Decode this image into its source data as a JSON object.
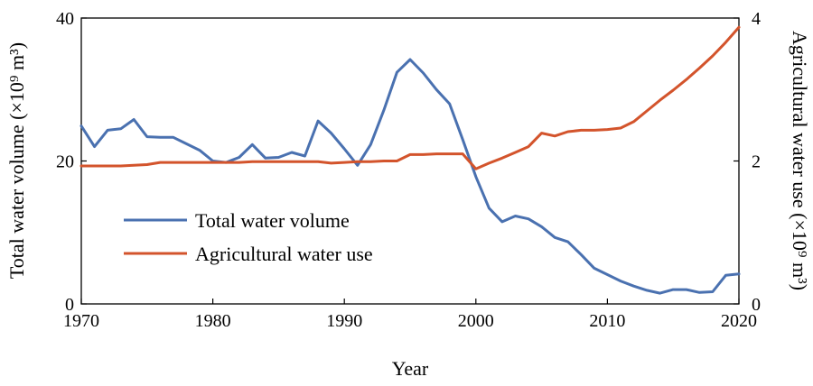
{
  "chart_data": {
    "type": "line",
    "xlabel": "Year",
    "ylabel_left": "Total water volume (×10⁹ m³)",
    "ylabel_right": "Agricultural water use (×10⁹ m³)",
    "xlim": [
      1970,
      2020
    ],
    "ylim_left": [
      0,
      40
    ],
    "ylim_right": [
      0,
      4
    ],
    "x_ticks": [
      "1970",
      "1980",
      "1990",
      "2000",
      "2010",
      "2020"
    ],
    "y_ticks_left": [
      "0",
      "20",
      "40"
    ],
    "y_ticks_right": [
      "0",
      "2",
      "4"
    ],
    "grid": false,
    "legend_position": "lower-left",
    "series": [
      {
        "name": "Total water volume",
        "axis": "left",
        "color": "#4a71b0",
        "points": [
          [
            1970,
            24.9
          ],
          [
            1971,
            22.0
          ],
          [
            1972,
            24.3
          ],
          [
            1973,
            24.5
          ],
          [
            1974,
            25.8
          ],
          [
            1975,
            23.4
          ],
          [
            1976,
            23.3
          ],
          [
            1977,
            23.3
          ],
          [
            1978,
            22.4
          ],
          [
            1979,
            21.5
          ],
          [
            1980,
            20.0
          ],
          [
            1981,
            19.8
          ],
          [
            1982,
            20.5
          ],
          [
            1983,
            22.3
          ],
          [
            1984,
            20.4
          ],
          [
            1985,
            20.5
          ],
          [
            1986,
            21.2
          ],
          [
            1987,
            20.7
          ],
          [
            1988,
            25.6
          ],
          [
            1989,
            23.9
          ],
          [
            1990,
            21.7
          ],
          [
            1991,
            19.4
          ],
          [
            1992,
            22.3
          ],
          [
            1993,
            27.1
          ],
          [
            1994,
            32.4
          ],
          [
            1995,
            34.2
          ],
          [
            1996,
            32.3
          ],
          [
            1997,
            30.0
          ],
          [
            1998,
            28.0
          ],
          [
            1999,
            23.0
          ],
          [
            2000,
            17.8
          ],
          [
            2001,
            13.4
          ],
          [
            2002,
            11.5
          ],
          [
            2003,
            12.3
          ],
          [
            2004,
            11.9
          ],
          [
            2005,
            10.8
          ],
          [
            2006,
            9.3
          ],
          [
            2007,
            8.7
          ],
          [
            2008,
            6.9
          ],
          [
            2009,
            5.0
          ],
          [
            2010,
            4.1
          ],
          [
            2011,
            3.2
          ],
          [
            2012,
            2.5
          ],
          [
            2013,
            1.9
          ],
          [
            2014,
            1.5
          ],
          [
            2015,
            2.0
          ],
          [
            2016,
            2.0
          ],
          [
            2017,
            1.6
          ],
          [
            2018,
            1.7
          ],
          [
            2019,
            4.0
          ],
          [
            2020,
            4.2
          ]
        ]
      },
      {
        "name": "Agricultural water use",
        "axis": "right",
        "color": "#d3542c",
        "points": [
          [
            1970,
            1.93
          ],
          [
            1971,
            1.93
          ],
          [
            1972,
            1.93
          ],
          [
            1973,
            1.93
          ],
          [
            1974,
            1.94
          ],
          [
            1975,
            1.95
          ],
          [
            1976,
            1.98
          ],
          [
            1977,
            1.98
          ],
          [
            1978,
            1.98
          ],
          [
            1979,
            1.98
          ],
          [
            1980,
            1.98
          ],
          [
            1981,
            1.98
          ],
          [
            1982,
            1.98
          ],
          [
            1983,
            1.99
          ],
          [
            1984,
            1.99
          ],
          [
            1985,
            1.99
          ],
          [
            1986,
            1.99
          ],
          [
            1987,
            1.99
          ],
          [
            1988,
            1.99
          ],
          [
            1989,
            1.97
          ],
          [
            1990,
            1.98
          ],
          [
            1991,
            1.99
          ],
          [
            1992,
            1.99
          ],
          [
            1993,
            2.0
          ],
          [
            1994,
            2.0
          ],
          [
            1995,
            2.09
          ],
          [
            1996,
            2.09
          ],
          [
            1997,
            2.1
          ],
          [
            1998,
            2.1
          ],
          [
            1999,
            2.1
          ],
          [
            2000,
            1.89
          ],
          [
            2001,
            1.97
          ],
          [
            2002,
            2.04
          ],
          [
            2003,
            2.12
          ],
          [
            2004,
            2.2
          ],
          [
            2005,
            2.39
          ],
          [
            2006,
            2.35
          ],
          [
            2007,
            2.41
          ],
          [
            2008,
            2.43
          ],
          [
            2009,
            2.43
          ],
          [
            2010,
            2.44
          ],
          [
            2011,
            2.46
          ],
          [
            2012,
            2.55
          ],
          [
            2013,
            2.7
          ],
          [
            2014,
            2.85
          ],
          [
            2015,
            2.99
          ],
          [
            2016,
            3.14
          ],
          [
            2017,
            3.3
          ],
          [
            2018,
            3.47
          ],
          [
            2019,
            3.66
          ],
          [
            2020,
            3.87
          ]
        ]
      }
    ]
  }
}
